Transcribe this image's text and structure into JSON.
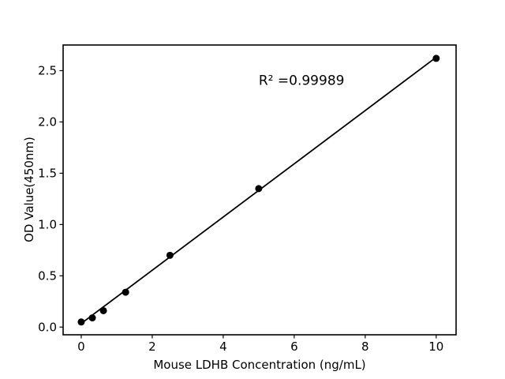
{
  "chart_data": {
    "type": "scatter",
    "title": "",
    "xlabel": "Mouse LDHB Concentration (ng/mL)",
    "ylabel": "OD Value(450nm)",
    "x": [
      0,
      0.313,
      0.625,
      1.25,
      2.5,
      5,
      10
    ],
    "y": [
      0.05,
      0.09,
      0.16,
      0.34,
      0.7,
      1.35,
      2.62
    ],
    "trendline": {
      "x1": 0,
      "y1": 0.035,
      "x2": 10,
      "y2": 2.63
    },
    "annotation": {
      "text": "R² =0.99989",
      "x": 5.0,
      "y": 2.36
    },
    "xlim": [
      -0.51,
      10.56
    ],
    "ylim": [
      -0.075,
      2.75
    ],
    "xticks": [
      0,
      2,
      4,
      6,
      8,
      10
    ],
    "xtick_labels": [
      "0",
      "2",
      "4",
      "6",
      "8",
      "10"
    ],
    "yticks": [
      0,
      0.5,
      1.0,
      1.5,
      2.0,
      2.5
    ],
    "ytick_labels": [
      "0.0",
      "0.5",
      "1.0",
      "1.5",
      "2.0",
      "2.5"
    ],
    "grid": false,
    "legend": null,
    "marker_color": "#000000",
    "line_color": "#000000",
    "background_color": "#ffffff"
  }
}
